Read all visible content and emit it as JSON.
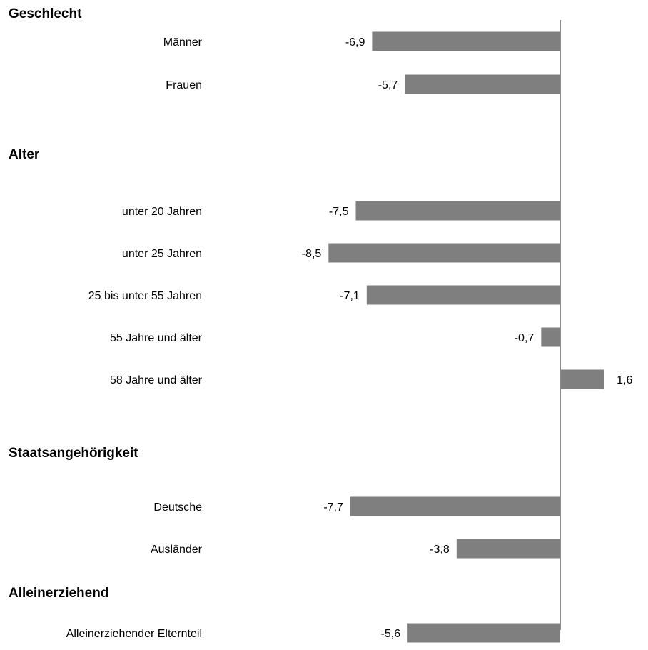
{
  "chart_data": {
    "type": "bar",
    "orientation": "horizontal",
    "bar_color": "#7f7f7f",
    "axis_color": "#8c8c8c",
    "groups": [
      {
        "title": "Geschlecht",
        "items": [
          {
            "label": "Männer",
            "value": -6.9,
            "value_label": "-6,9"
          },
          {
            "label": "Frauen",
            "value": -5.7,
            "value_label": "-5,7"
          }
        ]
      },
      {
        "title": "Alter",
        "items": [
          {
            "label": "unter 20 Jahren",
            "value": -7.5,
            "value_label": "-7,5"
          },
          {
            "label": "unter 25 Jahren",
            "value": -8.5,
            "value_label": "-8,5"
          },
          {
            "label": "25 bis unter 55 Jahren",
            "value": -7.1,
            "value_label": "-7,1"
          },
          {
            "label": "55 Jahre und älter",
            "value": -0.7,
            "value_label": "-0,7"
          },
          {
            "label": "58 Jahre und älter",
            "value": 1.6,
            "value_label": "1,6"
          }
        ]
      },
      {
        "title": "Staatsangehörigkeit",
        "items": [
          {
            "label": "Deutsche",
            "value": -7.7,
            "value_label": "-7,7"
          },
          {
            "label": "Ausländer",
            "value": -3.8,
            "value_label": "-3,8"
          }
        ]
      },
      {
        "title": "Alleinerziehend",
        "items": [
          {
            "label": "Alleinerziehender Elternteil",
            "value": -5.6,
            "value_label": "-5,6"
          }
        ]
      }
    ]
  }
}
